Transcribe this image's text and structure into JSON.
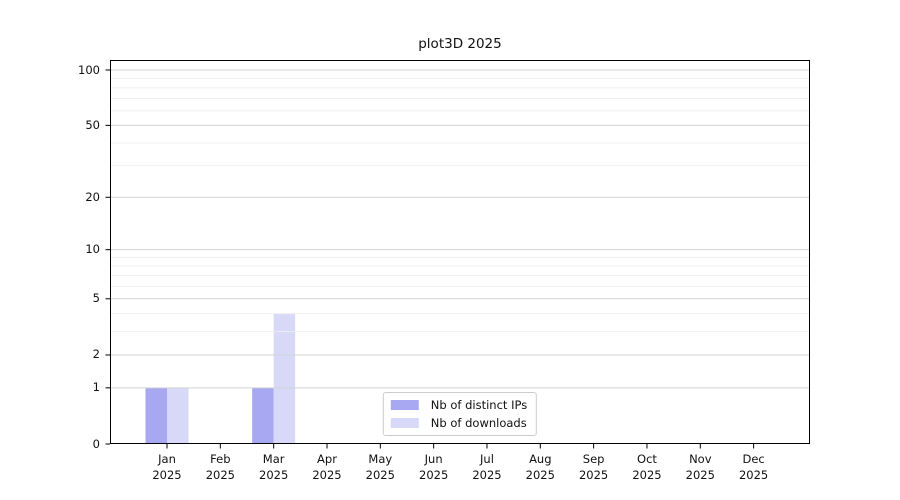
{
  "title": "plot3D 2025",
  "chart_data": {
    "type": "bar",
    "title": "plot3D 2025",
    "categories": [
      "Jan",
      "Feb",
      "Mar",
      "Apr",
      "May",
      "Jun",
      "Jul",
      "Aug",
      "Sep",
      "Oct",
      "Nov",
      "Dec"
    ],
    "year": "2025",
    "series": [
      {
        "name": "Nb of distinct IPs",
        "color": "#a8a8f2",
        "values": [
          1,
          0,
          1,
          0,
          0,
          0,
          0,
          0,
          0,
          0,
          0,
          0
        ]
      },
      {
        "name": "Nb of downloads",
        "color": "#d8d8f8",
        "values": [
          1,
          0,
          4,
          0,
          0,
          0,
          0,
          0,
          0,
          0,
          0,
          0
        ]
      }
    ],
    "xlabel": "",
    "ylabel": "",
    "yscale": "log1p",
    "ylim": [
      0,
      100
    ],
    "y_major_ticks": [
      0,
      1,
      2,
      5,
      10,
      20,
      50,
      100
    ],
    "y_minor_ticks": [
      3,
      4,
      6,
      7,
      8,
      9,
      30,
      40,
      60,
      70,
      80,
      90
    ],
    "grid": true,
    "legend_position": "lower center"
  },
  "colors": {
    "background": "#ffffff",
    "spine": "#000000",
    "major_grid": "#d3d3d3",
    "minor_grid": "#efefef",
    "text": "#111111",
    "legend_border": "#cccccc"
  }
}
